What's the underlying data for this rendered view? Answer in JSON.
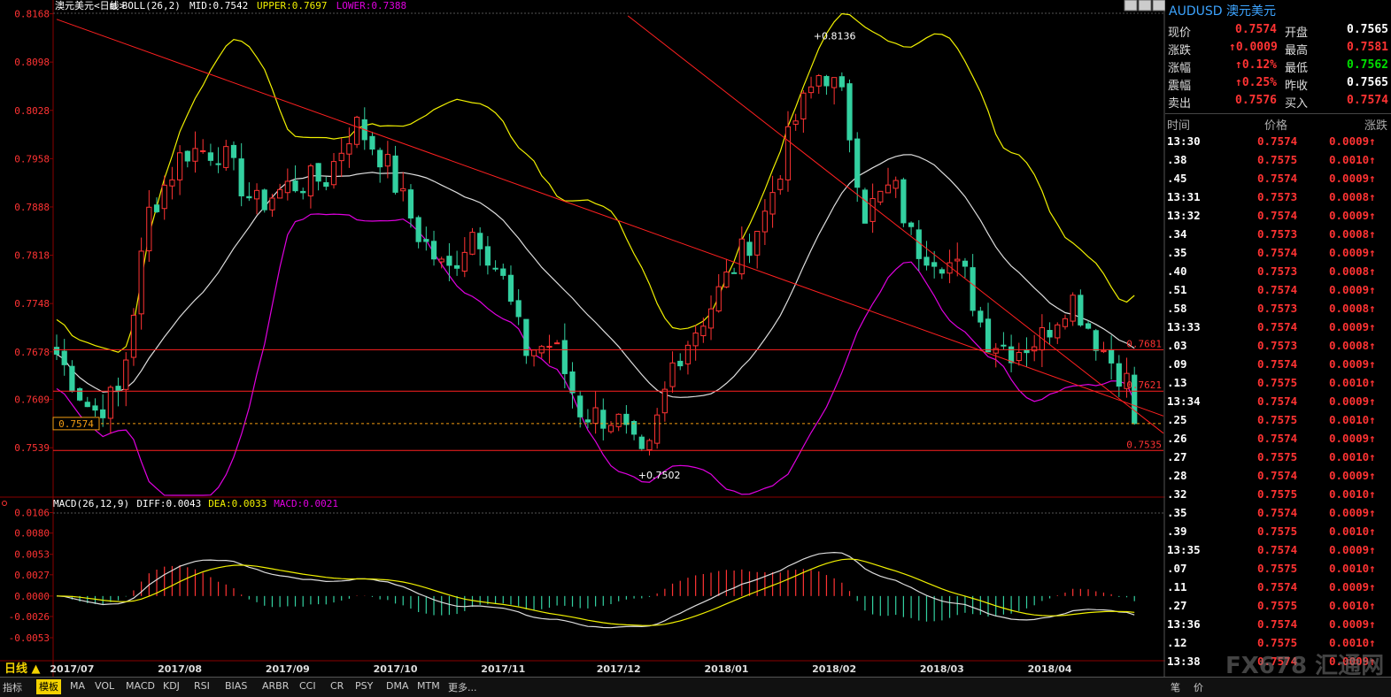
{
  "header": {
    "name": "澳元美元",
    "period": "日线",
    "boll_label": "BOLL(26,2)",
    "mid": "MID:0.7542",
    "upper": "UPPER:0.7697",
    "lower": "LOWER:0.7388"
  },
  "macd_header": {
    "label": "MACD(26,12,9)",
    "diff": "DIFF:0.0043",
    "dea": "DEA:0.0033",
    "macd": "MACD:0.0021"
  },
  "colors": {
    "up": "#ff3333",
    "down": "#33d0a0",
    "upper": "#f0f000",
    "mid": "#dddddd",
    "lower": "#e000e0",
    "trend": "#ff2020"
  },
  "chart_data": [
    {
      "type": "candlestick",
      "y_ticks": [
        "0.8168",
        "0.8098",
        "0.8028",
        "0.7958",
        "0.7888",
        "0.7818",
        "0.7748",
        "0.7678",
        "0.7609",
        "0.7539"
      ],
      "ylim": [
        0.747,
        0.817
      ],
      "x_labels": [
        "2017/07",
        "2017/08",
        "2017/09",
        "2017/10",
        "2017/11",
        "2017/12",
        "2018/01",
        "2018/02",
        "2018/03",
        "2018/04"
      ],
      "period": "日线",
      "current_price_label": "0.7574",
      "current_price": 0.7574,
      "annotations": [
        {
          "text": "+0.8136",
          "value": 0.8136
        },
        {
          "text": "+0.7502",
          "value": 0.7502
        }
      ],
      "levels": [
        {
          "label": "0.7681",
          "value": 0.7681
        },
        {
          "label": "0.7621",
          "value": 0.7621
        },
        {
          "label": "0.7535",
          "value": 0.7535
        }
      ],
      "trendlines": [
        {
          "from": [
            0,
            0.816
          ],
          "to": [
            140,
            0.7585
          ]
        },
        {
          "from": [
            80,
            0.8165
          ],
          "to": [
            140,
            0.756
          ]
        }
      ],
      "series": [
        {
          "name": "MID",
          "value_last": 0.7542
        },
        {
          "name": "UPPER",
          "value_last": 0.7697
        },
        {
          "name": "LOWER",
          "value_last": 0.7388
        }
      ],
      "grid": false
    },
    {
      "type": "bar",
      "y_ticks": [
        "0.0106",
        "0.0080",
        "0.0053",
        "0.0027",
        "0.0000",
        "-0.0026",
        "-0.0053"
      ],
      "ylim": [
        -0.008,
        0.011
      ],
      "series": [
        {
          "name": "DIFF",
          "value_last": 0.0043
        },
        {
          "name": "DEA",
          "value_last": 0.0033
        },
        {
          "name": "MACD",
          "value_last": 0.0021
        }
      ]
    }
  ],
  "quote": {
    "symbol": "AUDUSD",
    "name": "澳元美元",
    "rows": [
      {
        "l1": "现价",
        "v1": "0.7574",
        "c1": "red",
        "l2": "开盘",
        "v2": "0.7565",
        "c2": "wht"
      },
      {
        "l1": "涨跌",
        "v1": "0.0009",
        "c1": "red",
        "l2": "最高",
        "v2": "0.7581",
        "c2": "red"
      },
      {
        "l1": "涨幅",
        "v1": "0.12%",
        "c1": "red",
        "l2": "最低",
        "v2": "0.7562",
        "c2": "grn"
      },
      {
        "l1": "震幅",
        "v1": "0.25%",
        "c1": "red",
        "l2": "昨收",
        "v2": "0.7565",
        "c2": "wht"
      },
      {
        "l1": "卖出",
        "v1": "0.7576",
        "c1": "red",
        "l2": "买入",
        "v2": "0.7574",
        "c2": "red"
      }
    ],
    "tick_headers": [
      "时间",
      "价格",
      "涨跌"
    ],
    "ticks": [
      {
        "t": "13:30",
        "p": "0.7574",
        "c": "0.0009"
      },
      {
        "t": ".38",
        "p": "0.7575",
        "c": "0.0010"
      },
      {
        "t": ".45",
        "p": "0.7574",
        "c": "0.0009"
      },
      {
        "t": "13:31",
        "p": "0.7573",
        "c": "0.0008"
      },
      {
        "t": "13:32",
        "p": "0.7574",
        "c": "0.0009"
      },
      {
        "t": ".34",
        "p": "0.7573",
        "c": "0.0008"
      },
      {
        "t": ".35",
        "p": "0.7574",
        "c": "0.0009"
      },
      {
        "t": ".40",
        "p": "0.7573",
        "c": "0.0008"
      },
      {
        "t": ".51",
        "p": "0.7574",
        "c": "0.0009"
      },
      {
        "t": ".58",
        "p": "0.7573",
        "c": "0.0008"
      },
      {
        "t": "13:33",
        "p": "0.7574",
        "c": "0.0009"
      },
      {
        "t": ".03",
        "p": "0.7573",
        "c": "0.0008"
      },
      {
        "t": ".09",
        "p": "0.7574",
        "c": "0.0009"
      },
      {
        "t": ".13",
        "p": "0.7575",
        "c": "0.0010"
      },
      {
        "t": "13:34",
        "p": "0.7574",
        "c": "0.0009"
      },
      {
        "t": ".25",
        "p": "0.7575",
        "c": "0.0010"
      },
      {
        "t": ".26",
        "p": "0.7574",
        "c": "0.0009"
      },
      {
        "t": ".27",
        "p": "0.7575",
        "c": "0.0010"
      },
      {
        "t": ".28",
        "p": "0.7574",
        "c": "0.0009"
      },
      {
        "t": ".32",
        "p": "0.7575",
        "c": "0.0010"
      },
      {
        "t": ".35",
        "p": "0.7574",
        "c": "0.0009"
      },
      {
        "t": ".39",
        "p": "0.7575",
        "c": "0.0010"
      },
      {
        "t": "13:35",
        "p": "0.7574",
        "c": "0.0009"
      },
      {
        "t": ".07",
        "p": "0.7575",
        "c": "0.0010"
      },
      {
        "t": ".11",
        "p": "0.7574",
        "c": "0.0009"
      },
      {
        "t": ".27",
        "p": "0.7575",
        "c": "0.0010"
      },
      {
        "t": "13:36",
        "p": "0.7574",
        "c": "0.0009"
      },
      {
        "t": ".12",
        "p": "0.7575",
        "c": "0.0010"
      },
      {
        "t": "13:38",
        "p": "0.7574",
        "c": "0.0009"
      }
    ],
    "footer_tabs": [
      "笔",
      "价"
    ]
  },
  "tabs": {
    "items": [
      "指标",
      "模板",
      "MA",
      "VOL",
      "MACD",
      "KDJ",
      "RSI",
      "BIAS",
      "ARBR",
      "CCI",
      "CR",
      "PSY",
      "DMA",
      "MTM",
      "更多..."
    ],
    "active_index": 1
  },
  "watermark": "FX678 汇通网"
}
